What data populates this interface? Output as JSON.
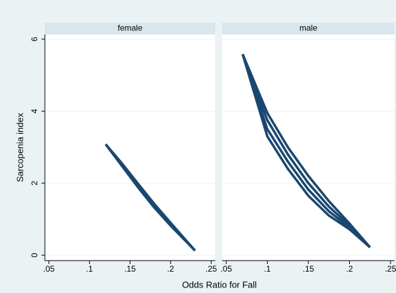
{
  "chart_data": [
    {
      "type": "line",
      "title": "female",
      "ylabel": "Sarcopenia index",
      "xlabel": "Odds Ratio for Fall",
      "x": [
        0.12,
        0.14,
        0.16,
        0.18,
        0.2,
        0.23
      ],
      "series": [
        {
          "color": "#1a476f",
          "values": [
            3.08,
            2.55,
            1.98,
            1.42,
            0.9,
            0.13
          ]
        },
        {
          "color": "#1a476f",
          "values": [
            3.08,
            2.51,
            1.93,
            1.37,
            0.86,
            0.13
          ]
        },
        {
          "color": "#1a476f",
          "values": [
            3.08,
            2.48,
            1.88,
            1.32,
            0.82,
            0.13
          ]
        }
      ],
      "xlim": [
        0.045,
        0.255
      ],
      "ylim": [
        -0.15,
        6.13
      ],
      "xticks": [
        {
          "value": 0.05,
          "label": ".05"
        },
        {
          "value": 0.1,
          "label": ".1"
        },
        {
          "value": 0.15,
          "label": ".15"
        },
        {
          "value": 0.2,
          "label": ".2"
        },
        {
          "value": 0.25,
          "label": ".25"
        }
      ],
      "yticks": [
        0,
        2,
        4,
        6
      ],
      "grid": true
    },
    {
      "type": "line",
      "title": "male",
      "x": [
        0.07,
        0.1,
        0.125,
        0.15,
        0.175,
        0.2,
        0.225
      ],
      "series": [
        {
          "color": "#1a476f",
          "values": [
            5.58,
            3.95,
            3.0,
            2.2,
            1.5,
            0.88,
            0.22
          ]
        },
        {
          "color": "#1a476f",
          "values": [
            5.58,
            3.75,
            2.8,
            2.0,
            1.35,
            0.82,
            0.22
          ]
        },
        {
          "color": "#1a476f",
          "values": [
            5.58,
            3.5,
            2.6,
            1.82,
            1.22,
            0.77,
            0.22
          ]
        },
        {
          "color": "#1a476f",
          "values": [
            5.58,
            3.3,
            2.4,
            1.65,
            1.1,
            0.72,
            0.22
          ]
        }
      ],
      "xlim": [
        0.045,
        0.255
      ],
      "ylim": [
        -0.15,
        6.13
      ],
      "xticks": [
        {
          "value": 0.05,
          "label": ".05"
        },
        {
          "value": 0.1,
          "label": ".1"
        },
        {
          "value": 0.15,
          "label": ".15"
        },
        {
          "value": 0.2,
          "label": ".2"
        },
        {
          "value": 0.25,
          "label": ".25"
        }
      ],
      "yticks": [
        0,
        2,
        4,
        6
      ],
      "grid": true
    }
  ]
}
